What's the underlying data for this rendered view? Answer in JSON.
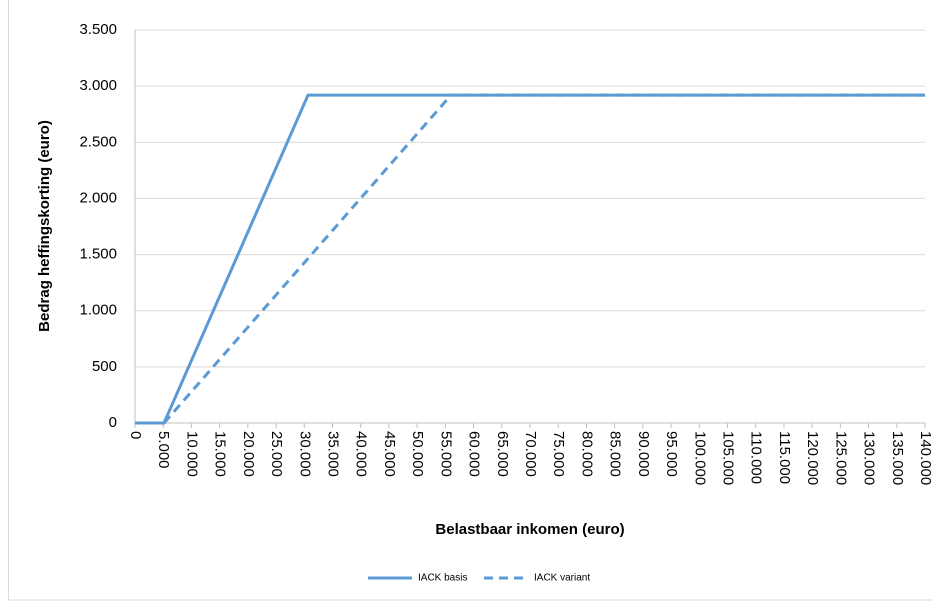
{
  "chart_data": {
    "type": "line",
    "xlabel": "Belastbaar inkomen (euro)",
    "ylabel": "Bedrag heffingskorting (euro)",
    "xlim": [
      0,
      140000
    ],
    "ylim": [
      0,
      3500
    ],
    "xticks": [
      {
        "value": 0,
        "label": "0"
      },
      {
        "value": 5000,
        "label": "5.000"
      },
      {
        "value": 10000,
        "label": "10.000"
      },
      {
        "value": 15000,
        "label": "15.000"
      },
      {
        "value": 20000,
        "label": "20.000"
      },
      {
        "value": 25000,
        "label": "25.000"
      },
      {
        "value": 30000,
        "label": "30.000"
      },
      {
        "value": 35000,
        "label": "35.000"
      },
      {
        "value": 40000,
        "label": "40.000"
      },
      {
        "value": 45000,
        "label": "45.000"
      },
      {
        "value": 50000,
        "label": "50.000"
      },
      {
        "value": 55000,
        "label": "55.000"
      },
      {
        "value": 60000,
        "label": "60.000"
      },
      {
        "value": 65000,
        "label": "65.000"
      },
      {
        "value": 70000,
        "label": "70.000"
      },
      {
        "value": 75000,
        "label": "75.000"
      },
      {
        "value": 80000,
        "label": "80.000"
      },
      {
        "value": 85000,
        "label": "85.000"
      },
      {
        "value": 90000,
        "label": "90.000"
      },
      {
        "value": 95000,
        "label": "95.000"
      },
      {
        "value": 100000,
        "label": "100.000"
      },
      {
        "value": 105000,
        "label": "105.000"
      },
      {
        "value": 110000,
        "label": "110.000"
      },
      {
        "value": 115000,
        "label": "115.000"
      },
      {
        "value": 120000,
        "label": "120.000"
      },
      {
        "value": 125000,
        "label": "125.000"
      },
      {
        "value": 130000,
        "label": "130.000"
      },
      {
        "value": 135000,
        "label": "135.000"
      },
      {
        "value": 140000,
        "label": "140.000"
      }
    ],
    "yticks": [
      0,
      {
        "value": 500,
        "label": "500"
      },
      {
        "value": 1000,
        "label": "1.000"
      },
      {
        "value": 1500,
        "label": "1.500"
      },
      {
        "value": 2000,
        "label": "2.000"
      },
      {
        "value": 2500,
        "label": "2.500"
      },
      {
        "value": 3000,
        "label": "3.000"
      },
      {
        "value": 3500,
        "label": "3.500"
      }
    ],
    "grid": true,
    "legend": "bottom",
    "series": [
      {
        "name": "IACK basis",
        "color": "#5b9bd5",
        "dash": false,
        "x": [
          0,
          5140,
          30660,
          140000
        ],
        "values": [
          0,
          0,
          2920,
          2920
        ]
      },
      {
        "name": "IACK variant",
        "color": "#5b9bd5",
        "dash": true,
        "x": [
          5140,
          56000,
          140000
        ],
        "values": [
          0,
          2920,
          2920
        ]
      }
    ]
  }
}
